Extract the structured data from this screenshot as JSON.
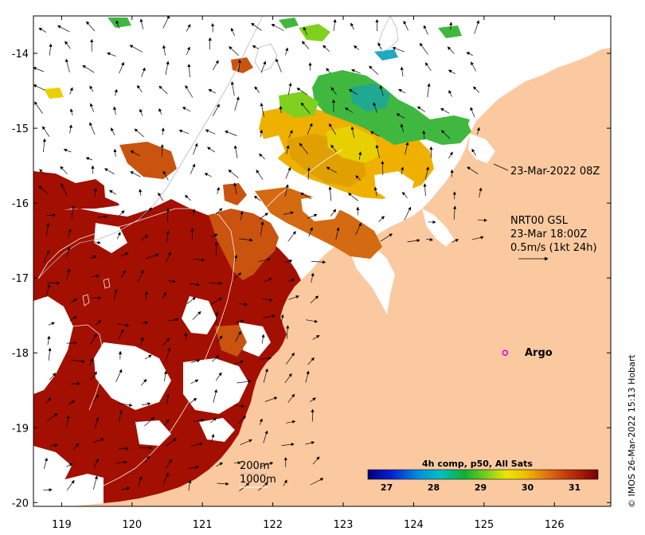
{
  "map": {
    "x_ticks": [
      "119",
      "120",
      "121",
      "122",
      "123",
      "124",
      "125",
      "126"
    ],
    "y_ticks": [
      "-14",
      "-15",
      "-16",
      "-17",
      "-18",
      "-19",
      "-20"
    ],
    "x_range": [
      118.6,
      126.8
    ],
    "y_range": [
      -20.05,
      -13.5
    ]
  },
  "annotations": {
    "sst_time": "23-Mar-2022 08Z",
    "current_product": "NRT00 GSL",
    "current_time": "23-Mar 18:00Z",
    "current_scale": "0.5m/s (1kt 24h)",
    "argo_label": "Argo",
    "contour_200": "200m",
    "contour_1000": "1000m",
    "credit": "© IMOS 26-Mar-2022 15:13 Hobart"
  },
  "colorbar": {
    "title": "4h comp, p50, All Sats",
    "labels": [
      "27",
      "28",
      "29",
      "30",
      "31"
    ],
    "range": [
      26.6,
      31.5
    ]
  },
  "colors": {
    "land": "#fbc9a0",
    "sst_hot": "#a30f00",
    "sst_warm": "#c9530f",
    "argo_marker": "#e000e0"
  },
  "argo": {
    "lon": 125.3,
    "lat": -18.0
  }
}
